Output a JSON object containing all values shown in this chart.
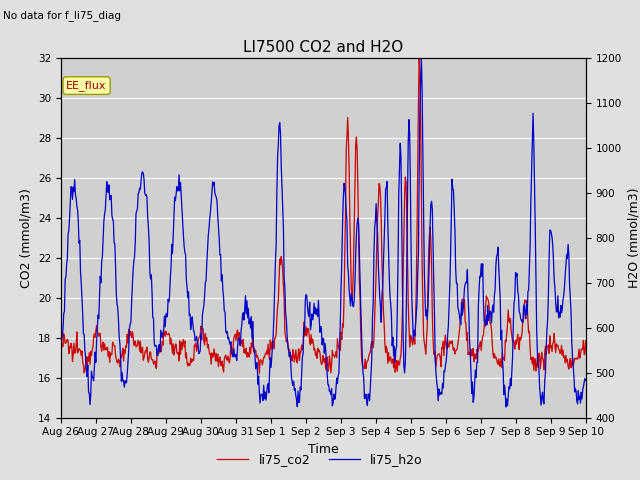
{
  "title": "LI7500 CO2 and H2O",
  "top_left_text": "No data for f_li75_diag",
  "xlabel": "Time",
  "ylabel_left": "CO2 (mmol/m3)",
  "ylabel_right": "H2O (mmol/m3)",
  "ylim_left": [
    14,
    32
  ],
  "ylim_right": [
    400,
    1200
  ],
  "yticks_left": [
    14,
    16,
    18,
    20,
    22,
    24,
    26,
    28,
    30,
    32
  ],
  "yticks_right": [
    400,
    500,
    600,
    700,
    800,
    900,
    1000,
    1100,
    1200
  ],
  "color_co2": "#cc0000",
  "color_h2o": "#0000cc",
  "legend_co2": "li75_co2",
  "legend_h2o": "li75_h2o",
  "annotation_label": "EE_flux",
  "bg_color": "#e0e0e0",
  "plot_bg_color": "#d0d0d0",
  "grid_color": "#ffffff",
  "tick_dates": [
    "Aug 26",
    "Aug 27",
    "Aug 28",
    "Aug 29",
    "Aug 30",
    "Aug 31",
    "Sep 1",
    "Sep 2",
    "Sep 3",
    "Sep 4",
    "Sep 5",
    "Sep 6",
    "Sep 7",
    "Sep 8",
    "Sep 9",
    "Sep 10"
  ],
  "linewidth_co2": 0.9,
  "linewidth_h2o": 0.9
}
